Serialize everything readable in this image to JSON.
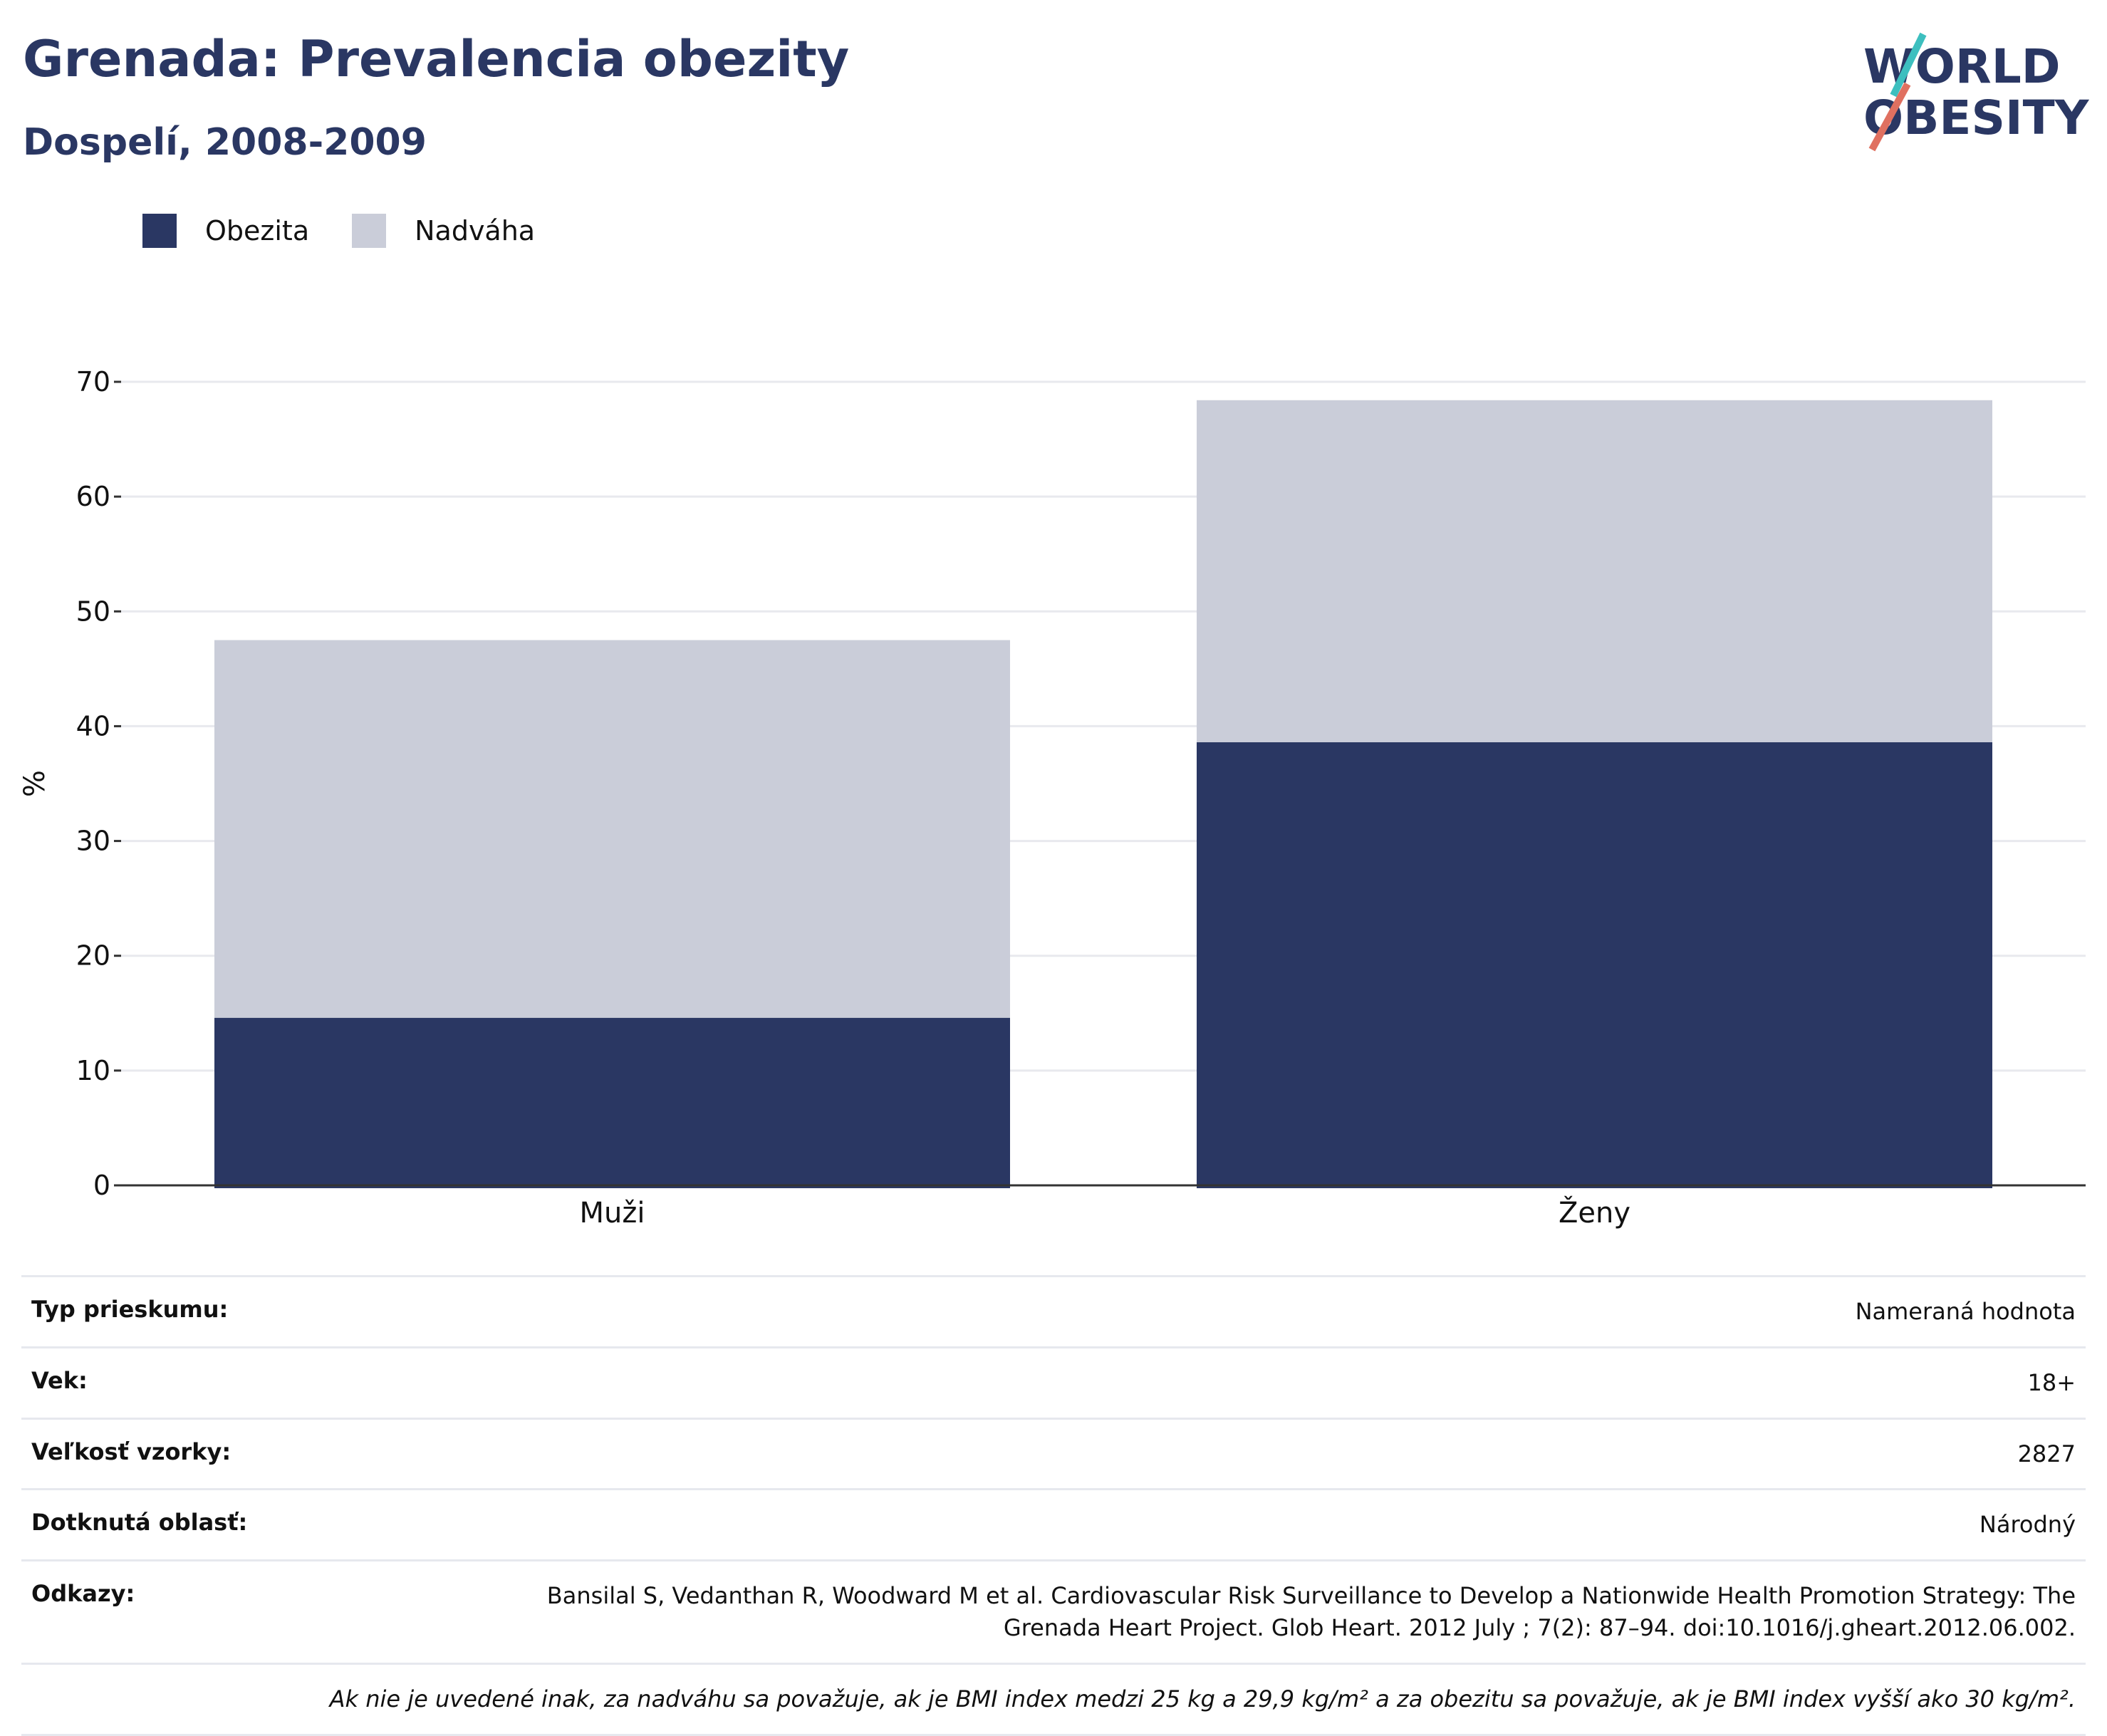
{
  "header": {
    "title": "Grenada: Prevalencia obezity",
    "subtitle": "Dospelí, 2008-2009"
  },
  "logo": {
    "line1": "WORLD",
    "line2": "OBESITY"
  },
  "colors": {
    "obesity": "#2a3763",
    "overweight": "#cacdd9",
    "accent_teal": "#3dbfbf",
    "accent_red": "#e07060"
  },
  "chart_data": {
    "type": "bar",
    "stacked": true,
    "categories": [
      "Muži",
      "Ženy"
    ],
    "series": [
      {
        "name": "Obezita",
        "values": [
          14.6,
          38.6
        ],
        "color": "#2a3763"
      },
      {
        "name": "Nadváha",
        "values": [
          32.9,
          29.8
        ],
        "color": "#cacdd9"
      }
    ],
    "ylabel": "%",
    "ylim": [
      0,
      70
    ],
    "yticks": [
      0,
      10,
      20,
      30,
      40,
      50,
      60,
      70
    ],
    "grid": true,
    "legend": "top-left"
  },
  "info": {
    "rows": [
      {
        "label": "Typ prieskumu:",
        "value": "Nameraná hodnota"
      },
      {
        "label": "Vek:",
        "value": "18+"
      },
      {
        "label": "Veľkosť vzorky:",
        "value": "2827"
      },
      {
        "label": "Dotknutá oblasť:",
        "value": "Národný"
      },
      {
        "label": "Odkazy:",
        "value": "Bansilal S, Vedanthan R, Woodward M et al. Cardiovascular Risk Surveillance to Develop a Nationwide Health Promotion Strategy: The Grenada Heart Project. Glob Heart. 2012 July ; 7(2): 87–94. doi:10.1016/j.gheart.2012.06.002."
      }
    ],
    "note": "Ak nie je uvedené inak, za nadváhu sa považuje, ak je BMI index medzi 25 kg a 29,9 kg/m² a za obezitu sa považuje, ak je BMI index vyšší ako 30 kg/m²."
  }
}
